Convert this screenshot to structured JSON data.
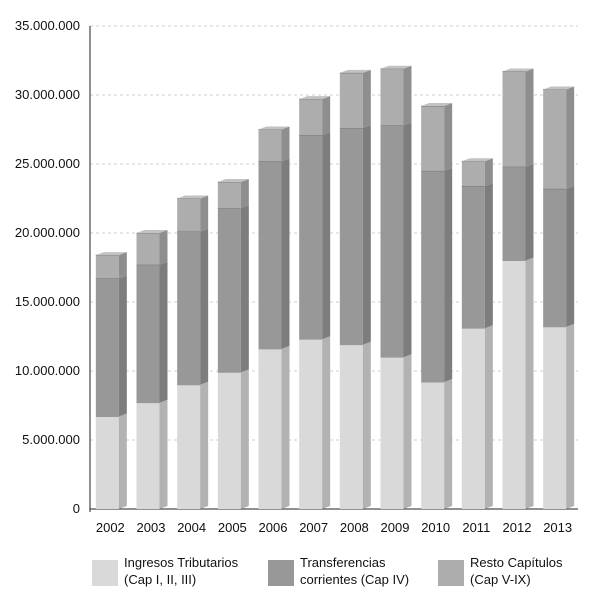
{
  "chart_data": {
    "type": "bar",
    "stacked": true,
    "categories": [
      "2002",
      "2003",
      "2004",
      "2005",
      "2006",
      "2007",
      "2008",
      "2009",
      "2010",
      "2011",
      "2012",
      "2013"
    ],
    "series": [
      {
        "name": "Ingresos Tributarios (Cap I, II, III)",
        "legend_lines": [
          "Ingresos Tributarios",
          "(Cap I, II, III)"
        ],
        "color": "#d9d9d9",
        "values": [
          6700000,
          7700000,
          9000000,
          9900000,
          11600000,
          12300000,
          11900000,
          11000000,
          9200000,
          13100000,
          18000000,
          13200000
        ]
      },
      {
        "name": "Transferencias corrientes (Cap IV)",
        "legend_lines": [
          "Transferencias",
          "corrientes (Cap IV)"
        ],
        "color": "#989898",
        "values": [
          10000000,
          10000000,
          11100000,
          11900000,
          13600000,
          14800000,
          15700000,
          16800000,
          15300000,
          10300000,
          6800000,
          10000000
        ]
      },
      {
        "name": "Resto Capítulos (Cap V-IX)",
        "legend_lines": [
          "Resto Capítulos",
          "(Cap V-IX)"
        ],
        "color": "#adadad",
        "values": [
          1700000,
          2300000,
          2400000,
          1900000,
          2300000,
          2600000,
          4000000,
          4100000,
          4700000,
          1800000,
          6900000,
          7200000
        ]
      }
    ],
    "y_ticks": [
      "0",
      "5.000.000",
      "10.000.000",
      "15.000.000",
      "20.000.000",
      "25.000.000",
      "30.000.000",
      "35.000.000"
    ],
    "ylim": [
      0,
      35000000
    ],
    "grid": true,
    "legend_position": "bottom"
  }
}
